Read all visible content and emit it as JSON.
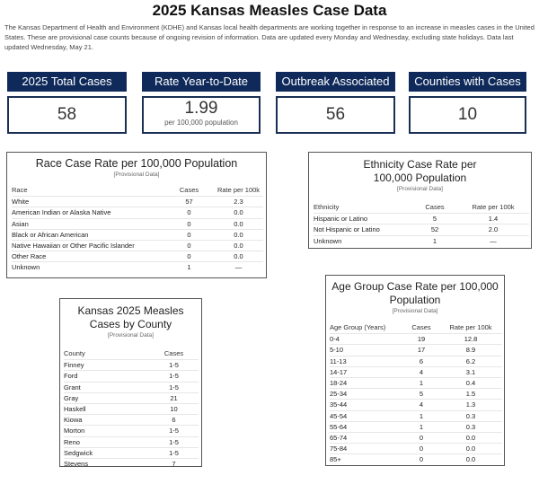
{
  "header": {
    "title": "2025 Kansas Measles Case Data",
    "intro": "The Kansas Department of Health and Environment (KDHE) and Kansas local health departments are working together in response to an increase in measles cases in the United States. These are provisional case counts because of ongoing revision of information. Data are updated every Monday and Wednesday, excluding state holidays. Data last updated Wednesday, May 21."
  },
  "kpis": [
    {
      "label": "2025 Total Cases",
      "value": "58"
    },
    {
      "label": "Rate Year-to-Date",
      "value": "1.99",
      "sub": "per 100,000 population"
    },
    {
      "label": "Outbreak Associated",
      "value": "56"
    },
    {
      "label": "Counties with Cases",
      "value": "10"
    }
  ],
  "race": {
    "title": "Race Case Rate per 100,000 Population",
    "subtitle": "[Provisional Data]",
    "headers": [
      "Race",
      "Cases",
      "Rate per 100k"
    ],
    "rows": [
      [
        "White",
        "57",
        "2.3"
      ],
      [
        "American Indian or Alaska Native",
        "0",
        "0.0"
      ],
      [
        "Asian",
        "0",
        "0.0"
      ],
      [
        "Black or African American",
        "0",
        "0.0"
      ],
      [
        "Native Hawaiian or Other Pacific Islander",
        "0",
        "0.0"
      ],
      [
        "Other Race",
        "0",
        "0.0"
      ],
      [
        "Unknown",
        "1",
        "—"
      ]
    ]
  },
  "ethnicity": {
    "title_line1": "Ethnicity Case Rate per",
    "title_line2": "100,000 Population",
    "subtitle": "[Provisional Data]",
    "headers": [
      "Ethnicity",
      "Cases",
      "Rate per 100k"
    ],
    "rows": [
      [
        "Hispanic or Latino",
        "5",
        "1.4"
      ],
      [
        "Not Hispanic or Latino",
        "52",
        "2.0"
      ],
      [
        "Unknown",
        "1",
        "—"
      ]
    ]
  },
  "county": {
    "title_line1": "Kansas 2025 Measles",
    "title_line2": "Cases by County",
    "subtitle": "[Provisional Data]",
    "headers": [
      "County",
      "Cases"
    ],
    "rows": [
      [
        "Finney",
        "1-5"
      ],
      [
        "Ford",
        "1-5"
      ],
      [
        "Grant",
        "1-5"
      ],
      [
        "Gray",
        "21"
      ],
      [
        "Haskell",
        "10"
      ],
      [
        "Kiowa",
        "6"
      ],
      [
        "Morton",
        "1-5"
      ],
      [
        "Reno",
        "1-5"
      ],
      [
        "Sedgwick",
        "1-5"
      ],
      [
        "Stevens",
        "7"
      ]
    ]
  },
  "age": {
    "title_line1": "Age Group Case Rate per 100,000",
    "title_line2": "Population",
    "subtitle": "[Provisional Data]",
    "headers": [
      "Age Group (Years)",
      "Cases",
      "Rate per 100k"
    ],
    "rows": [
      [
        "0-4",
        "19",
        "12.8"
      ],
      [
        "5-10",
        "17",
        "8.9"
      ],
      [
        "11-13",
        "6",
        "6.2"
      ],
      [
        "14-17",
        "4",
        "3.1"
      ],
      [
        "18-24",
        "1",
        "0.4"
      ],
      [
        "25-34",
        "5",
        "1.5"
      ],
      [
        "35-44",
        "4",
        "1.3"
      ],
      [
        "45-54",
        "1",
        "0.3"
      ],
      [
        "55-64",
        "1",
        "0.3"
      ],
      [
        "65-74",
        "0",
        "0.0"
      ],
      [
        "75-84",
        "0",
        "0.0"
      ],
      [
        "85+",
        "0",
        "0.0"
      ]
    ]
  }
}
